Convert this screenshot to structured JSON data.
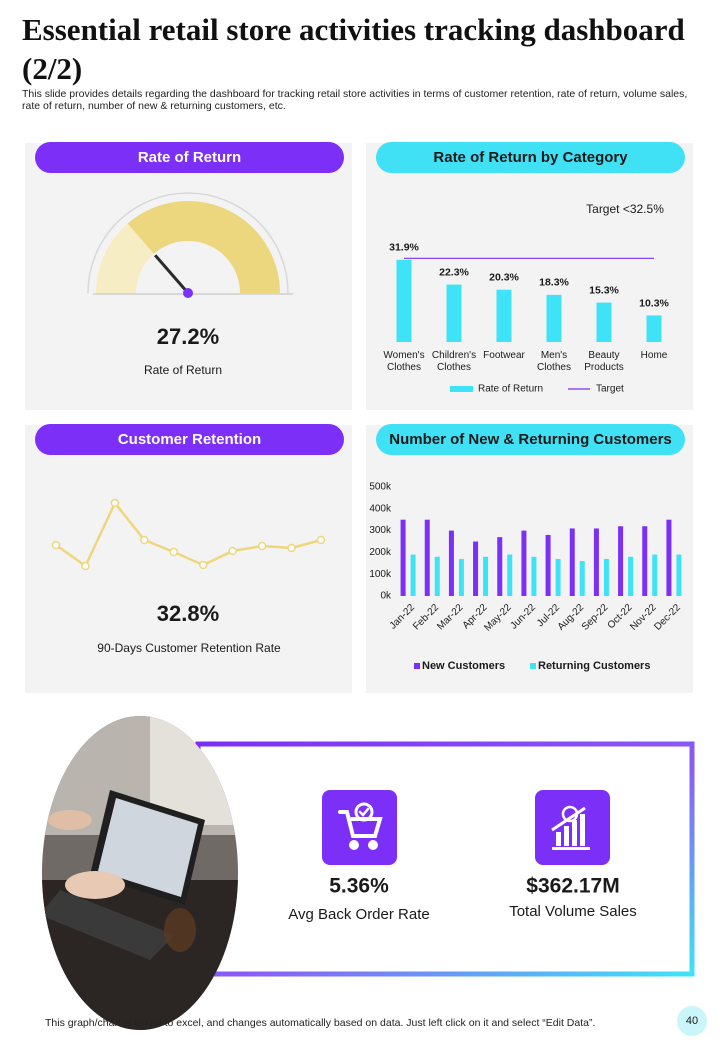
{
  "header": {
    "title": "Essential retail store activities tracking dashboard (2/2)",
    "subtitle": "This slide provides details regarding the dashboard for tracking retail store activities in terms of customer retention, rate of return, volume sales, rate of return, number of new & returning customers, etc."
  },
  "chart_data": [
    {
      "type": "gauge",
      "title": "Rate of Return",
      "value": 27.2,
      "value_label": "27.2%",
      "caption": "Rate of Return",
      "ylim": [
        0,
        100
      ]
    },
    {
      "type": "bar",
      "title": "Rate of Return by Category",
      "annotation": "Target  <32.5%",
      "categories": [
        "Women's Clothes",
        "Children's Clothes",
        "Footwear",
        "Men's Clothes",
        "Beauty Products",
        "Home"
      ],
      "series": [
        {
          "name": "Rate of Return",
          "color": "#3ee3f7",
          "values": [
            31.9,
            22.3,
            20.3,
            18.3,
            15.3,
            10.3
          ],
          "value_labels": [
            "31.9%",
            "22.3%",
            "20.3%",
            "18.3%",
            "15.3%",
            "10.3%"
          ]
        },
        {
          "name": "Target",
          "type": "line",
          "color": "#7b2ff7",
          "values": [
            32.5,
            32.5,
            32.5,
            32.5,
            32.5,
            32.5
          ]
        }
      ],
      "ylim": [
        0,
        40
      ],
      "grid": false
    },
    {
      "type": "line",
      "title": "Customer Retention",
      "values": [
        55,
        34,
        97,
        60,
        48,
        35,
        49,
        54,
        52,
        60
      ],
      "color": "#efd67c",
      "ylim": [
        0,
        100
      ],
      "value": 32.8,
      "value_label": "32.8%",
      "caption": "90-Days Customer Retention Rate"
    },
    {
      "type": "bar",
      "title": "Number of New & Returning Customers",
      "categories": [
        "Jan-22",
        "Feb-22",
        "Mar-22",
        "Apr-22",
        "May-22",
        "Jun-22",
        "Jul-22",
        "Aug-22",
        "Sep-22",
        "Oct-22",
        "Nov-22",
        "Dec-22"
      ],
      "series": [
        {
          "name": "New Customers",
          "color": "#7b2ff7",
          "values": [
            350000,
            350000,
            300000,
            250000,
            270000,
            300000,
            280000,
            310000,
            310000,
            320000,
            320000,
            350000
          ]
        },
        {
          "name": "Returning Customers",
          "color": "#3ee3f7",
          "values": [
            190000,
            180000,
            170000,
            180000,
            190000,
            180000,
            170000,
            160000,
            170000,
            180000,
            190000,
            190000
          ]
        }
      ],
      "ylim": [
        0,
        500000
      ],
      "yticks": [
        {
          "value": 0,
          "label": "0k"
        },
        {
          "value": 100000,
          "label": "100k"
        },
        {
          "value": 200000,
          "label": "200k"
        },
        {
          "value": 300000,
          "label": "300k"
        },
        {
          "value": 400000,
          "label": "400k"
        },
        {
          "value": 500000,
          "label": "500k"
        }
      ],
      "grid": false
    }
  ],
  "kpis": [
    {
      "value": "5.36%",
      "label": "Avg Back Order Rate"
    },
    {
      "value": "$362.17M",
      "label": "Total Volume Sales"
    }
  ],
  "footer": {
    "note": "This graph/chart is linked to excel,  and changes automatically based on data. Just left click on it and select “Edit Data”.",
    "page": 40
  }
}
